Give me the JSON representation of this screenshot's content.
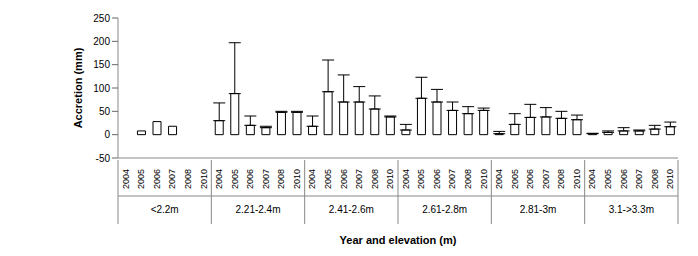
{
  "chart_data": {
    "type": "bar",
    "x_label": "Year and elevation (m)",
    "y_label": "Accretion (mm)",
    "ylim": [
      -50,
      250
    ],
    "yticks": [
      -50,
      0,
      50,
      100,
      150,
      200,
      250
    ],
    "grid": false,
    "color": "#ffffff",
    "groups": [
      {
        "name": "<2.2m",
        "categories": [
          "2004",
          "2005",
          "2006",
          "2007",
          "2008",
          "2010"
        ],
        "values": [
          null,
          8,
          28,
          18,
          null,
          null
        ],
        "errors": [
          null,
          null,
          null,
          null,
          null,
          null
        ]
      },
      {
        "name": "2.21-2.4m",
        "categories": [
          "2004",
          "2005",
          "2006",
          "2007",
          "2008",
          "2010"
        ],
        "values": [
          30,
          88,
          20,
          15,
          48,
          48
        ],
        "errors": [
          38,
          109,
          20,
          3,
          2,
          2
        ]
      },
      {
        "name": "2.41-2.6m",
        "categories": [
          "2004",
          "2005",
          "2006",
          "2007",
          "2008",
          "2010"
        ],
        "values": [
          18,
          92,
          70,
          70,
          55,
          38
        ],
        "errors": [
          22,
          68,
          58,
          33,
          28,
          2
        ]
      },
      {
        "name": "2.61-2.8m",
        "categories": [
          "2004",
          "2005",
          "2006",
          "2007",
          "2008",
          "2010"
        ],
        "values": [
          10,
          78,
          70,
          52,
          45,
          52
        ],
        "errors": [
          12,
          45,
          27,
          18,
          15,
          5
        ]
      },
      {
        "name": "2.81-3m",
        "categories": [
          "2004",
          "2005",
          "2006",
          "2007",
          "2008",
          "2010"
        ],
        "values": [
          2,
          22,
          37,
          38,
          35,
          32
        ],
        "errors": [
          5,
          23,
          28,
          20,
          15,
          10
        ]
      },
      {
        "name": "3.1->3.3m",
        "categories": [
          "2004",
          "2005",
          "2006",
          "2007",
          "2008",
          "2010"
        ],
        "values": [
          2,
          5,
          8,
          8,
          12,
          17
        ],
        "errors": [
          1,
          3,
          7,
          2,
          8,
          10
        ]
      }
    ]
  }
}
